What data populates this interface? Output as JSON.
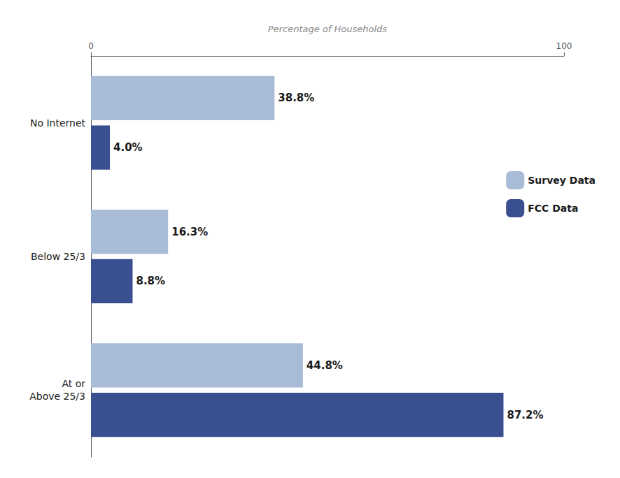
{
  "chart_data": {
    "type": "bar",
    "orientation": "horizontal",
    "xlabel": "Percentage of Households",
    "categories": [
      "No Internet",
      "Below 25/3",
      "At or\nAbove 25/3"
    ],
    "series": [
      {
        "name": "Survey Data",
        "color": "#a8bcd8",
        "values": [
          38.8,
          16.3,
          44.8
        ],
        "value_labels": [
          "38.8%",
          "16.3%",
          "44.8%"
        ]
      },
      {
        "name": "FCC Data",
        "color": "#3a4f8f",
        "values": [
          4.0,
          8.8,
          87.2
        ],
        "value_labels": [
          "4.0%",
          "8.8%",
          "87.2%"
        ]
      }
    ],
    "xlim": [
      0,
      100
    ],
    "xticks": [
      0,
      100
    ],
    "grid": false,
    "legend": "upper right",
    "data_labels": true
  }
}
